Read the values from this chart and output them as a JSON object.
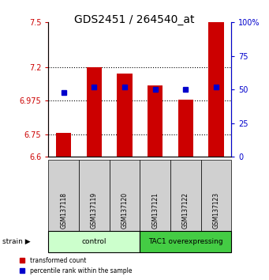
{
  "title": "GDS2451 / 264540_at",
  "samples": [
    "GSM137118",
    "GSM137119",
    "GSM137120",
    "GSM137121",
    "GSM137122",
    "GSM137123"
  ],
  "transformed_counts": [
    6.76,
    7.2,
    7.16,
    7.08,
    6.98,
    7.5
  ],
  "percentile_ranks": [
    48,
    52,
    52,
    50,
    50,
    52
  ],
  "ylim_left": [
    6.6,
    7.5
  ],
  "yticks_left": [
    6.6,
    6.75,
    6.975,
    7.2,
    7.5
  ],
  "yticks_right": [
    0,
    25,
    50,
    75,
    100
  ],
  "ylim_right": [
    0,
    100
  ],
  "bar_color": "#cc0000",
  "dot_color": "#0000cc",
  "groups": [
    {
      "label": "control",
      "start": 0,
      "end": 3,
      "color": "#ccffcc"
    },
    {
      "label": "TAC1 overexpressing",
      "start": 3,
      "end": 6,
      "color": "#44cc44"
    }
  ],
  "strain_label": "strain",
  "legend_red": "transformed count",
  "legend_blue": "percentile rank within the sample",
  "grid_dotted": true
}
